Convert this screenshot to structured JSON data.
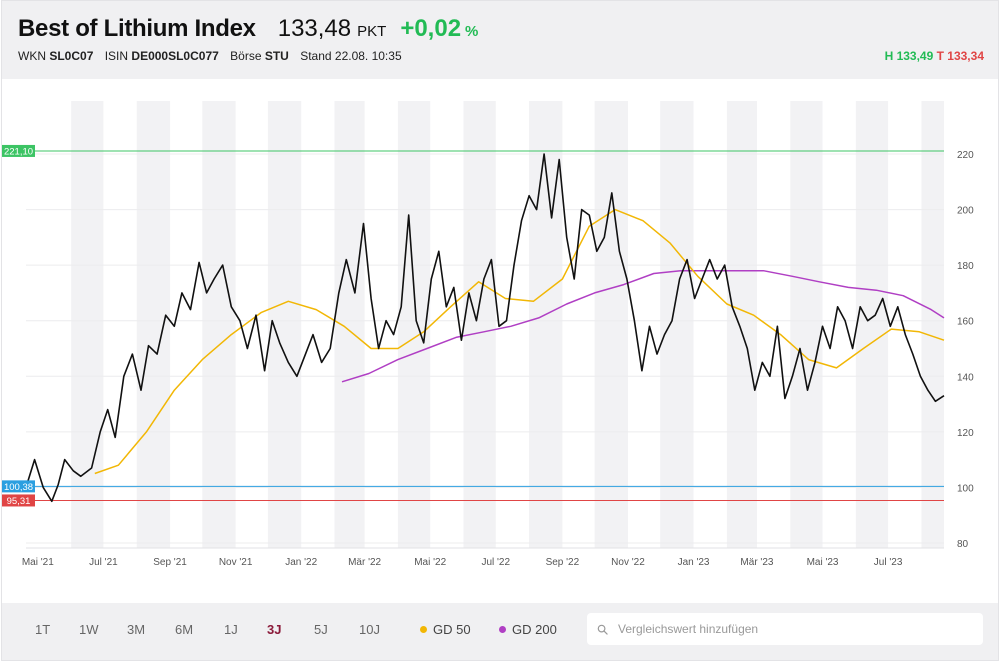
{
  "header": {
    "title": "Best of Lithium Index",
    "price": "133,48",
    "unit": "PKT",
    "change": "+0,02",
    "change_unit": "%",
    "wkn_label": "WKN",
    "wkn": "SL0C07",
    "isin_label": "ISIN",
    "isin": "DE000SL0C077",
    "exchange_label": "Börse",
    "exchange": "STU",
    "stand_label": "Stand",
    "stand": "22.08. 10:35",
    "high": "H 133,49",
    "low": "T 133,34"
  },
  "footer": {
    "ranges": [
      "1T",
      "1W",
      "3M",
      "6M",
      "1J",
      "3J",
      "5J",
      "10J"
    ],
    "active_range": "3J",
    "legend": [
      {
        "label": "GD 50",
        "color": "#f2b705"
      },
      {
        "label": "GD 200",
        "color": "#b03fc4"
      }
    ],
    "search_placeholder": "Vergleichswert hinzufügen"
  },
  "chart_data": {
    "type": "line",
    "x_ticks": [
      "Mai '21",
      "Jul '21",
      "Sep '21",
      "Nov '21",
      "Jan '22",
      "Mär '22",
      "Mai '22",
      "Jul '22",
      "Sep '22",
      "Nov '22",
      "Jan '23",
      "Mär '23",
      "Mai '23",
      "Jul '23"
    ],
    "y_ticks": [
      80,
      100,
      120,
      140,
      160,
      180,
      200,
      220
    ],
    "ylim": [
      80,
      230
    ],
    "grid": "horizontal + alternating month bands",
    "reference_lines": [
      {
        "label": "221,10",
        "value": 221.1,
        "color": "#3cc464"
      },
      {
        "label": "100,38",
        "value": 100.38,
        "color": "#2b9fe0"
      },
      {
        "label": "95,31",
        "value": 95.31,
        "color": "#e04545"
      }
    ],
    "series": [
      {
        "color": "#111111",
        "x": [
          "2021-04-20",
          "2021-04-28",
          "2021-05-06",
          "2021-05-14",
          "2021-05-20",
          "2021-05-26",
          "2021-06-03",
          "2021-06-10",
          "2021-06-20",
          "2021-06-28",
          "2021-07-05",
          "2021-07-12",
          "2021-07-20",
          "2021-07-28",
          "2021-08-05",
          "2021-08-12",
          "2021-08-20",
          "2021-08-28",
          "2021-09-05",
          "2021-09-12",
          "2021-09-20",
          "2021-09-28",
          "2021-10-05",
          "2021-10-12",
          "2021-10-20",
          "2021-10-28",
          "2021-11-05",
          "2021-11-12",
          "2021-11-20",
          "2021-11-28",
          "2021-12-05",
          "2021-12-12",
          "2021-12-20",
          "2021-12-28",
          "2022-01-05",
          "2022-01-12",
          "2022-01-20",
          "2022-01-28",
          "2022-02-05",
          "2022-02-12",
          "2022-02-20",
          "2022-02-28",
          "2022-03-07",
          "2022-03-14",
          "2022-03-21",
          "2022-03-28",
          "2022-04-04",
          "2022-04-11",
          "2022-04-18",
          "2022-04-25",
          "2022-05-02",
          "2022-05-09",
          "2022-05-16",
          "2022-05-23",
          "2022-05-30",
          "2022-06-06",
          "2022-06-13",
          "2022-06-20",
          "2022-06-27",
          "2022-07-04",
          "2022-07-11",
          "2022-07-18",
          "2022-07-25",
          "2022-08-01",
          "2022-08-08",
          "2022-08-15",
          "2022-08-22",
          "2022-08-29",
          "2022-09-05",
          "2022-09-12",
          "2022-09-19",
          "2022-09-26",
          "2022-10-03",
          "2022-10-10",
          "2022-10-17",
          "2022-10-24",
          "2022-10-31",
          "2022-11-07",
          "2022-11-14",
          "2022-11-21",
          "2022-11-28",
          "2022-12-05",
          "2022-12-12",
          "2022-12-19",
          "2022-12-26",
          "2023-01-02",
          "2023-01-09",
          "2023-01-16",
          "2023-01-23",
          "2023-01-30",
          "2023-02-06",
          "2023-02-13",
          "2023-02-20",
          "2023-02-27",
          "2023-03-06",
          "2023-03-13",
          "2023-03-20",
          "2023-03-27",
          "2023-04-03",
          "2023-04-10",
          "2023-04-17",
          "2023-04-24",
          "2023-05-01",
          "2023-05-08",
          "2023-05-15",
          "2023-05-22",
          "2023-05-29",
          "2023-06-05",
          "2023-06-12",
          "2023-06-19",
          "2023-06-26",
          "2023-07-03",
          "2023-07-10",
          "2023-07-17",
          "2023-07-24",
          "2023-07-31",
          "2023-08-07",
          "2023-08-14",
          "2023-08-22"
        ],
        "y": [
          100,
          110,
          100,
          95,
          101,
          110,
          106,
          104,
          107,
          120,
          128,
          118,
          140,
          148,
          135,
          151,
          148,
          162,
          158,
          170,
          164,
          181,
          170,
          175,
          180,
          165,
          160,
          150,
          162,
          142,
          160,
          152,
          145,
          140,
          148,
          155,
          145,
          150,
          170,
          182,
          170,
          195,
          168,
          150,
          160,
          155,
          165,
          198,
          160,
          152,
          175,
          185,
          165,
          172,
          153,
          170,
          160,
          175,
          182,
          158,
          160,
          180,
          196,
          205,
          200,
          220,
          197,
          218,
          190,
          175,
          200,
          198,
          185,
          190,
          206,
          185,
          175,
          160,
          142,
          158,
          148,
          155,
          160,
          175,
          182,
          168,
          175,
          182,
          175,
          180,
          165,
          158,
          150,
          135,
          145,
          140,
          158,
          132,
          140,
          150,
          135,
          145,
          158,
          150,
          165,
          160,
          150,
          165,
          160,
          162,
          168,
          158,
          165,
          155,
          148,
          140,
          135,
          131,
          133
        ]
      },
      {
        "name": "GD 50",
        "color": "#f2b705",
        "x": [
          "2021-06-23",
          "2021-07-15",
          "2021-08-10",
          "2021-09-05",
          "2021-10-01",
          "2021-10-28",
          "2021-11-25",
          "2021-12-20",
          "2022-01-15",
          "2022-02-10",
          "2022-03-07",
          "2022-04-01",
          "2022-04-25",
          "2022-05-20",
          "2022-06-15",
          "2022-07-10",
          "2022-08-05",
          "2022-09-01",
          "2022-09-26",
          "2022-10-20",
          "2022-11-15",
          "2022-12-10",
          "2023-01-05",
          "2023-02-01",
          "2023-02-26",
          "2023-03-23",
          "2023-04-18",
          "2023-05-14",
          "2023-06-08",
          "2023-07-04",
          "2023-07-30",
          "2023-08-22"
        ],
        "y": [
          105,
          108,
          120,
          135,
          146,
          155,
          163,
          167,
          164,
          158,
          150,
          150,
          156,
          165,
          174,
          168,
          167,
          175,
          194,
          200,
          196,
          188,
          176,
          166,
          162,
          155,
          146,
          143,
          150,
          157,
          156,
          153
        ]
      },
      {
        "name": "GD 200",
        "color": "#b03fc4",
        "x": [
          "2022-02-08",
          "2022-03-05",
          "2022-04-01",
          "2022-04-28",
          "2022-05-25",
          "2022-06-20",
          "2022-07-15",
          "2022-08-10",
          "2022-09-05",
          "2022-10-01",
          "2022-10-28",
          "2022-11-25",
          "2022-12-20",
          "2023-01-15",
          "2023-02-10",
          "2023-03-07",
          "2023-04-03",
          "2023-04-28",
          "2023-05-25",
          "2023-06-20",
          "2023-07-15",
          "2023-08-10",
          "2023-08-22"
        ],
        "y": [
          138,
          141,
          146,
          150,
          154,
          156,
          158,
          161,
          166,
          170,
          173,
          177,
          178,
          178,
          178,
          178,
          176,
          174,
          172,
          171,
          169,
          164,
          161
        ]
      }
    ]
  }
}
